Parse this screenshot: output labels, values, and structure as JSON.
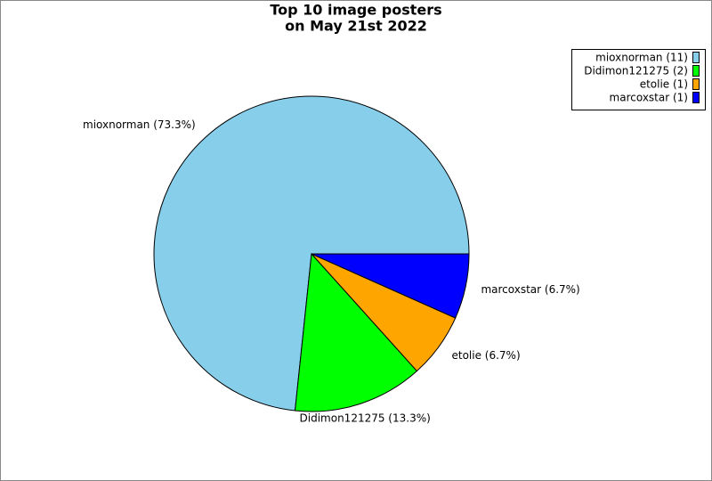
{
  "chart_data": {
    "type": "pie",
    "title": "Top 10 image posters",
    "subtitle": "on May 21st 2022",
    "values": [
      11,
      2,
      1,
      1
    ],
    "colors": [
      "#87ceeb",
      "#00ff00",
      "#ffa500",
      "#0000ff"
    ],
    "legend_labels": [
      "mioxnorman (11)",
      "Didimon121275 (2)",
      "etolie (1)",
      "marcoxstar (1)"
    ],
    "slice_labels": [
      "mioxnorman (73.3%)",
      "Didimon121275 (13.3%)",
      "etolie (6.7%)",
      "marcoxstar (6.7%)"
    ],
    "legend": "upper right"
  }
}
